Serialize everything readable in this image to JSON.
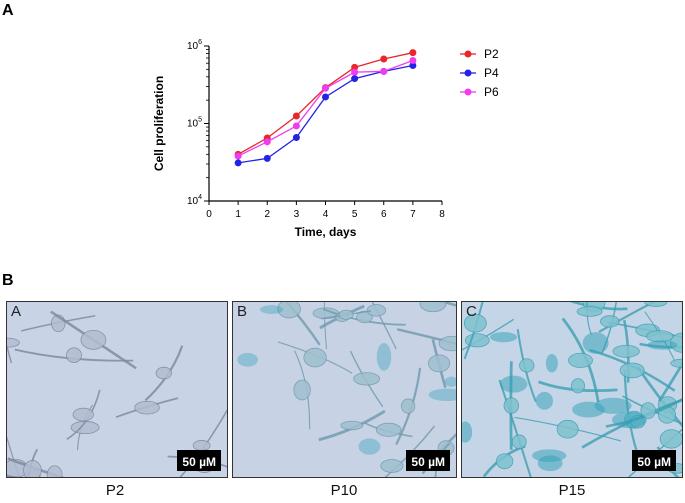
{
  "panels": {
    "a_label": "A",
    "b_label": "B"
  },
  "chart_data": {
    "type": "line",
    "xlabel": "Time, days",
    "ylabel": "Cell proliferation",
    "y_scale": "log",
    "xlim": [
      0,
      8
    ],
    "ylim": [
      10000,
      1000000
    ],
    "x_ticks": [
      "0",
      "1",
      "2",
      "3",
      "4",
      "5",
      "6",
      "7",
      "8"
    ],
    "y_ticks": [
      {
        "base": "10",
        "exp": "4",
        "value": 10000
      },
      {
        "base": "10",
        "exp": "5",
        "value": 100000
      },
      {
        "base": "10",
        "exp": "6",
        "value": 1000000
      }
    ],
    "x": [
      1,
      2,
      3,
      4,
      5,
      6,
      7
    ],
    "legend_position": "right",
    "series": [
      {
        "name": "P2",
        "color": "#e8262b",
        "values": [
          40000,
          65000,
          125000,
          290000,
          530000,
          680000,
          820000
        ]
      },
      {
        "name": "P4",
        "color": "#2323e6",
        "values": [
          31000,
          35500,
          66000,
          220000,
          380000,
          470000,
          560000
        ]
      },
      {
        "name": "P6",
        "color": "#f03cf0",
        "values": [
          38000,
          58000,
          93000,
          285000,
          460000,
          470000,
          650000
        ]
      }
    ]
  },
  "micrographs": [
    {
      "letter": "A",
      "caption": "P2",
      "scale": "50 µM",
      "stain": "light"
    },
    {
      "letter": "B",
      "caption": "P10",
      "scale": "50 µM",
      "stain": "medium"
    },
    {
      "letter": "C",
      "caption": "P15",
      "scale": "50 µM",
      "stain": "heavy"
    }
  ]
}
